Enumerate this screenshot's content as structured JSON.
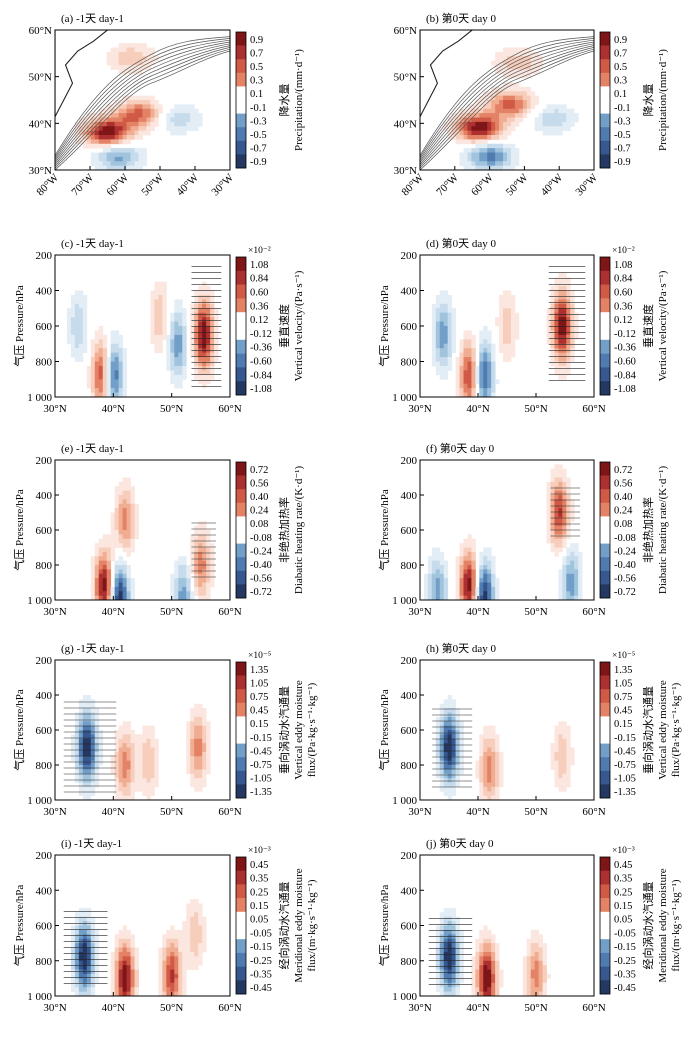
{
  "colors": {
    "pos": [
      "#fbe7df",
      "#f7cdbb",
      "#f1ad92",
      "#e48266",
      "#d05a45",
      "#ac3030",
      "#7e1618"
    ],
    "neg": [
      "#e3edf5",
      "#c6dbeb",
      "#a0c4de",
      "#719fc8",
      "#4f7bb0",
      "#37578f",
      "#253862"
    ],
    "neutral": "#ffffff",
    "contour": "#555555",
    "land": "#ffffff"
  },
  "panels": [
    {
      "id": "a",
      "title": "(a) -1天 day-1",
      "kind": "map",
      "xticks": [
        "80°W",
        "70°W",
        "60°W",
        "50°W",
        "40°W",
        "30°W"
      ],
      "yticks": [
        "60°N",
        "50°N",
        "40°N",
        "30°N"
      ],
      "colorbar": {
        "ticks": [
          "0.9",
          "0.7",
          "0.5",
          "0.3",
          "0.1",
          "-0.1",
          "-0.3",
          "-0.5",
          "-0.7",
          "-0.9"
        ],
        "label_cn": "降水量",
        "label_en": "Precipitation/(mm·d⁻¹)",
        "exponent": ""
      }
    },
    {
      "id": "b",
      "title": "(b) 第0天 day 0",
      "kind": "map",
      "xticks": [
        "80°W",
        "70°W",
        "60°W",
        "50°W",
        "40°W",
        "30°W"
      ],
      "yticks": [
        "60°N",
        "50°N",
        "40°N",
        "30°N"
      ],
      "colorbar": {
        "ticks": [
          "0.9",
          "0.7",
          "0.5",
          "0.3",
          "0.1",
          "-0.1",
          "-0.3",
          "-0.5",
          "-0.7",
          "-0.9"
        ],
        "label_cn": "降水量",
        "label_en": "Precipitation/(mm·d⁻¹)",
        "exponent": ""
      }
    },
    {
      "id": "c",
      "title": "(c) -1天 day-1",
      "kind": "section",
      "xticks": [
        "30°N",
        "40°N",
        "50°N",
        "60°N"
      ],
      "yticks": [
        "200",
        "400",
        "600",
        "800",
        "1 000"
      ],
      "ylabel": "气压 Pressure/hPa",
      "colorbar": {
        "ticks": [
          "1.08",
          "0.84",
          "0.60",
          "0.36",
          "0.12",
          "-0.12",
          "-0.36",
          "-0.60",
          "-0.84",
          "-1.08"
        ],
        "label_cn": "垂直速度",
        "label_en": "Vertical velocity/(Pa·s⁻¹)",
        "exponent": "×10⁻²"
      }
    },
    {
      "id": "d",
      "title": "(d) 第0天 day 0",
      "kind": "section",
      "xticks": [
        "30°N",
        "40°N",
        "50°N",
        "60°N"
      ],
      "yticks": [
        "200",
        "400",
        "600",
        "800",
        "1 000"
      ],
      "ylabel": "气压 Pressure/hPa",
      "colorbar": {
        "ticks": [
          "1.08",
          "0.84",
          "0.60",
          "0.36",
          "0.12",
          "-0.12",
          "-0.36",
          "-0.60",
          "-0.84",
          "-1.08"
        ],
        "label_cn": "垂直速度",
        "label_en": "Vertical velocity/(Pa·s⁻¹)",
        "exponent": "×10⁻²"
      }
    },
    {
      "id": "e",
      "title": "(e) -1天 day-1",
      "kind": "section",
      "xticks": [
        "30°N",
        "40°N",
        "50°N",
        "60°N"
      ],
      "yticks": [
        "200",
        "400",
        "600",
        "800",
        "1 000"
      ],
      "ylabel": "气压 Pressure/hPa",
      "colorbar": {
        "ticks": [
          "0.72",
          "0.56",
          "0.40",
          "0.24",
          "0.08",
          "-0.08",
          "-0.24",
          "-0.40",
          "-0.56",
          "-0.72"
        ],
        "label_cn": "非绝热加热率",
        "label_en": "Diabatic heating rate/(K·d⁻¹)",
        "exponent": ""
      }
    },
    {
      "id": "f",
      "title": "(f) 第0天 day 0",
      "kind": "section",
      "xticks": [
        "30°N",
        "40°N",
        "50°N",
        "60°N"
      ],
      "yticks": [
        "200",
        "400",
        "600",
        "800",
        "1 000"
      ],
      "ylabel": "气压 Pressure/hPa",
      "colorbar": {
        "ticks": [
          "0.72",
          "0.56",
          "0.40",
          "0.24",
          "0.08",
          "-0.08",
          "-0.24",
          "-0.40",
          "-0.56",
          "-0.72"
        ],
        "label_cn": "非绝热加热率",
        "label_en": "Diabatic heating rate/(K·d⁻¹)",
        "exponent": ""
      }
    },
    {
      "id": "g",
      "title": "(g) -1天 day-1",
      "kind": "section",
      "xticks": [
        "30°N",
        "40°N",
        "50°N",
        "60°N"
      ],
      "yticks": [
        "200",
        "400",
        "600",
        "800",
        "1 000"
      ],
      "ylabel": "气压 Pressure/hPa",
      "colorbar": {
        "ticks": [
          "1.35",
          "1.05",
          "0.75",
          "0.45",
          "0.15",
          "-0.15",
          "-0.45",
          "-0.75",
          "-1.05",
          "-1.35"
        ],
        "label_cn": "垂向涡动水汽通量",
        "label_en": "Vertical eddy moisture",
        "label_en2": "flux/(Pa·kg·s⁻¹·kg⁻¹)",
        "exponent": "×10⁻⁵"
      }
    },
    {
      "id": "h",
      "title": "(h) 第0天 day 0",
      "kind": "section",
      "xticks": [
        "30°N",
        "40°N",
        "50°N",
        "60°N"
      ],
      "yticks": [
        "200",
        "400",
        "600",
        "800",
        "1 000"
      ],
      "ylabel": "气压 Pressure/hPa",
      "colorbar": {
        "ticks": [
          "1.35",
          "1.05",
          "0.75",
          "0.45",
          "0.15",
          "-0.15",
          "-0.45",
          "-0.75",
          "-1.05",
          "-1.35"
        ],
        "label_cn": "垂向涡动水汽通量",
        "label_en": "Vertical eddy moisture",
        "label_en2": "flux/(Pa·kg·s⁻¹·kg⁻¹)",
        "exponent": "×10⁻⁵"
      }
    },
    {
      "id": "i",
      "title": "(i) -1天 day-1",
      "kind": "section",
      "xticks": [
        "30°N",
        "40°N",
        "50°N",
        "60°N"
      ],
      "yticks": [
        "200",
        "400",
        "600",
        "800",
        "1 000"
      ],
      "ylabel": "气压 Pressure/hPa",
      "colorbar": {
        "ticks": [
          "0.45",
          "0.35",
          "0.25",
          "0.15",
          "0.05",
          "-0.05",
          "-0.15",
          "-0.25",
          "-0.35",
          "-0.45"
        ],
        "label_cn": "经向涡动水汽通量",
        "label_en": "Meridional eddy moisture",
        "label_en2": "flux/(m·kg·s⁻¹·kg⁻¹)",
        "exponent": "×10⁻³"
      }
    },
    {
      "id": "j",
      "title": "(j) 第0天 day 0",
      "kind": "section",
      "xticks": [
        "30°N",
        "40°N",
        "50°N",
        "60°N"
      ],
      "yticks": [
        "200",
        "400",
        "600",
        "800",
        "1 000"
      ],
      "ylabel": "气压 Pressure/hPa",
      "colorbar": {
        "ticks": [
          "0.45",
          "0.35",
          "0.25",
          "0.15",
          "0.05",
          "-0.05",
          "-0.15",
          "-0.25",
          "-0.35",
          "-0.45"
        ],
        "label_cn": "经向涡动水汽通量",
        "label_en": "Meridional eddy moisture",
        "label_en2": "flux/(m·kg·s⁻¹·kg⁻¹)",
        "exponent": "×10⁻³"
      }
    }
  ],
  "chart_data": [
    {
      "type": "heatmap",
      "panel": "a",
      "title": "(a) -1天 day-1",
      "xlabel": "",
      "ylabel": "",
      "xlim": [
        -80,
        -30
      ],
      "ylim": [
        30,
        60
      ],
      "colorbar_range": [
        -0.9,
        0.9
      ],
      "units": "mm·d⁻¹",
      "blobs": [
        {
          "lon": -65,
          "lat": 38,
          "value": 0.9
        },
        {
          "lon": -56,
          "lat": 42,
          "value": 0.6
        },
        {
          "lon": -58,
          "lat": 54,
          "value": 0.3
        },
        {
          "lon": -62,
          "lat": 33,
          "value": -0.5
        },
        {
          "lon": -45,
          "lat": 41,
          "value": -0.3
        }
      ]
    },
    {
      "type": "heatmap",
      "panel": "b",
      "title": "(b) 第0天 day 0",
      "xlabel": "",
      "ylabel": "",
      "xlim": [
        -80,
        -30
      ],
      "ylim": [
        30,
        60
      ],
      "colorbar_range": [
        -0.9,
        0.9
      ],
      "units": "mm·d⁻¹",
      "blobs": [
        {
          "lon": -63,
          "lat": 39,
          "value": 0.9
        },
        {
          "lon": -54,
          "lat": 44,
          "value": 0.6
        },
        {
          "lon": -52,
          "lat": 53,
          "value": 0.3
        },
        {
          "lon": -60,
          "lat": 33,
          "value": -0.6
        },
        {
          "lon": -42,
          "lat": 41,
          "value": -0.3
        }
      ]
    },
    {
      "type": "heatmap",
      "panel": "c",
      "title": "(c) -1天 day-1",
      "xlabel": "",
      "ylabel": "气压 Pressure/hPa",
      "xlim": [
        30,
        60
      ],
      "ylim": [
        1000,
        200
      ],
      "colorbar_range": [
        -1.08,
        1.08
      ],
      "units": "×10⁻² Pa·s⁻¹",
      "blobs": [
        {
          "lat": 38,
          "p": 870,
          "value": 0.84
        },
        {
          "lat": 40,
          "p": 880,
          "value": -0.84
        },
        {
          "lat": 55.5,
          "p": 650,
          "value": 1.08
        },
        {
          "lat": 48,
          "p": 550,
          "value": 0.36
        },
        {
          "lat": 34,
          "p": 600,
          "value": -0.36
        },
        {
          "lat": 51,
          "p": 700,
          "value": -0.6
        }
      ]
    },
    {
      "type": "heatmap",
      "panel": "d",
      "title": "(d) 第0天 day 0",
      "xlabel": "",
      "ylabel": "气压 Pressure/hPa",
      "xlim": [
        30,
        60
      ],
      "ylim": [
        1000,
        200
      ],
      "colorbar_range": [
        -1.08,
        1.08
      ],
      "units": "×10⁻² Pa·s⁻¹",
      "blobs": [
        {
          "lat": 38.5,
          "p": 880,
          "value": 0.84
        },
        {
          "lat": 41,
          "p": 880,
          "value": -0.84
        },
        {
          "lat": 54.5,
          "p": 600,
          "value": 1.08
        },
        {
          "lat": 45,
          "p": 600,
          "value": 0.36
        },
        {
          "lat": 34,
          "p": 650,
          "value": -0.6
        }
      ]
    },
    {
      "type": "heatmap",
      "panel": "e",
      "title": "(e) -1天 day-1",
      "xlabel": "",
      "ylabel": "气压 Pressure/hPa",
      "xlim": [
        30,
        60
      ],
      "ylim": [
        1000,
        200
      ],
      "colorbar_range": [
        -0.72,
        0.72
      ],
      "units": "K·d⁻¹",
      "blobs": [
        {
          "lat": 38.5,
          "p": 920,
          "value": 0.72
        },
        {
          "lat": 41,
          "p": 980,
          "value": -0.72
        },
        {
          "lat": 42,
          "p": 550,
          "value": 0.4
        },
        {
          "lat": 55,
          "p": 800,
          "value": 0.4
        },
        {
          "lat": 52,
          "p": 980,
          "value": -0.4
        }
      ]
    },
    {
      "type": "heatmap",
      "panel": "f",
      "title": "(f) 第0天 day 0",
      "xlabel": "",
      "ylabel": "气压 Pressure/hPa",
      "xlim": [
        30,
        60
      ],
      "ylim": [
        1000,
        200
      ],
      "colorbar_range": [
        -0.72,
        0.72
      ],
      "units": "K·d⁻¹",
      "blobs": [
        {
          "lat": 38.5,
          "p": 920,
          "value": 0.72
        },
        {
          "lat": 41,
          "p": 980,
          "value": -0.72
        },
        {
          "lat": 54,
          "p": 500,
          "value": 0.56
        },
        {
          "lat": 56,
          "p": 900,
          "value": -0.4
        },
        {
          "lat": 33,
          "p": 950,
          "value": -0.4
        }
      ]
    },
    {
      "type": "heatmap",
      "panel": "g",
      "title": "(g) -1天 day-1",
      "xlabel": "",
      "ylabel": "气压 Pressure/hPa",
      "xlim": [
        30,
        60
      ],
      "ylim": [
        1000,
        200
      ],
      "colorbar_range": [
        -1.35,
        1.35
      ],
      "units": "×10⁻⁵ Pa·kg·s⁻¹·kg⁻¹",
      "blobs": [
        {
          "lat": 35.5,
          "p": 700,
          "value": -1.35
        },
        {
          "lat": 42,
          "p": 800,
          "value": 0.75
        },
        {
          "lat": 46,
          "p": 780,
          "value": 0.45
        },
        {
          "lat": 54.5,
          "p": 700,
          "value": 0.75
        }
      ]
    },
    {
      "type": "heatmap",
      "panel": "h",
      "title": "(h) 第0天 day 0",
      "xlabel": "",
      "ylabel": "气压 Pressure/hPa",
      "xlim": [
        30,
        60
      ],
      "ylim": [
        1000,
        200
      ],
      "colorbar_range": [
        -1.35,
        1.35
      ],
      "units": "×10⁻⁵ Pa·kg·s⁻¹·kg⁻¹",
      "blobs": [
        {
          "lat": 35,
          "p": 700,
          "value": -1.35
        },
        {
          "lat": 42,
          "p": 820,
          "value": 0.75
        },
        {
          "lat": 54.5,
          "p": 750,
          "value": 0.45
        }
      ]
    },
    {
      "type": "heatmap",
      "panel": "i",
      "title": "(i) -1天 day-1",
      "xlabel": "",
      "ylabel": "气压 Pressure/hPa",
      "xlim": [
        30,
        60
      ],
      "ylim": [
        1000,
        200
      ],
      "colorbar_range": [
        -0.45,
        0.45
      ],
      "units": "×10⁻³ m·kg·s⁻¹·kg⁻¹",
      "blobs": [
        {
          "lat": 35,
          "p": 780,
          "value": -0.45
        },
        {
          "lat": 42,
          "p": 900,
          "value": 0.45
        },
        {
          "lat": 50,
          "p": 880,
          "value": 0.35
        },
        {
          "lat": 54,
          "p": 650,
          "value": 0.15
        }
      ]
    },
    {
      "type": "heatmap",
      "panel": "j",
      "title": "(j) 第0天 day 0",
      "xlabel": "",
      "ylabel": "气压 Pressure/hPa",
      "xlim": [
        30,
        60
      ],
      "ylim": [
        1000,
        200
      ],
      "colorbar_range": [
        -0.45,
        0.45
      ],
      "units": "×10⁻³ m·kg·s⁻¹·kg⁻¹",
      "blobs": [
        {
          "lat": 35,
          "p": 780,
          "value": -0.45
        },
        {
          "lat": 41.5,
          "p": 900,
          "value": 0.45
        },
        {
          "lat": 50,
          "p": 880,
          "value": 0.25
        }
      ]
    }
  ]
}
